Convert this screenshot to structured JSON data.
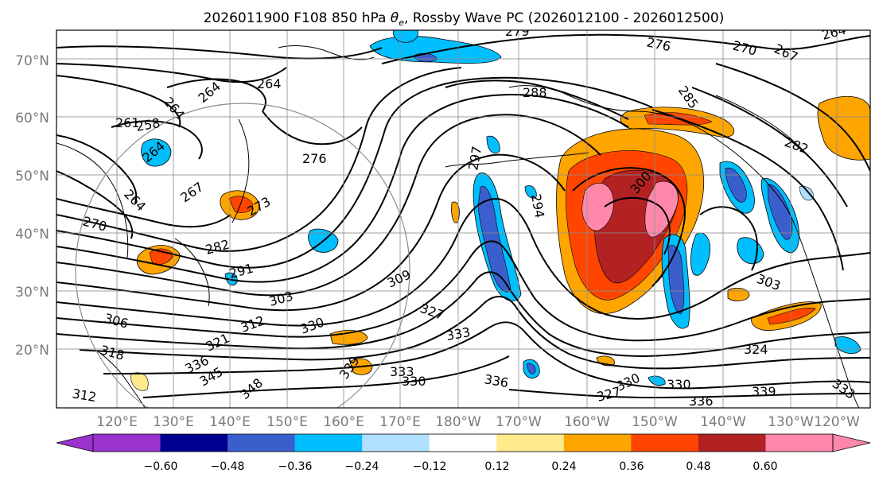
{
  "title": {
    "prefix": "2026011900 F108 850 hPa ",
    "theta": "θ",
    "theta_sub": "e",
    "suffix": ", Rossby Wave PC (2026012100 - 2026012500)"
  },
  "map": {
    "projection": "equirectangular",
    "lon_range": [
      "110°E",
      "120°W"
    ],
    "lat_range": [
      "10°N",
      "75°N"
    ],
    "fill_variable": "Rossby Wave PC",
    "contour_variable": "850 hPa theta-e",
    "lat_labels": [
      "70°N",
      "60°N",
      "50°N",
      "40°N",
      "30°N",
      "20°N"
    ],
    "lon_labels": [
      "120°E",
      "130°E",
      "140°E",
      "150°E",
      "160°E",
      "170°E",
      "180°W",
      "170°W",
      "160°W",
      "150°W",
      "140°W",
      "130°W",
      "120°W"
    ],
    "contour_labels": [
      "279",
      "276",
      "270",
      "267",
      "264",
      "288",
      "285",
      "282",
      "264",
      "264",
      "264",
      "264",
      "261",
      "258",
      "276",
      "264",
      "267",
      "270",
      "273",
      "282",
      "291",
      "303",
      "309",
      "300",
      "297",
      "294",
      "303",
      "312",
      "321",
      "330",
      "306",
      "318",
      "336",
      "345",
      "348",
      "327",
      "333",
      "333",
      "339",
      "336",
      "330",
      "330",
      "330",
      "327",
      "324",
      "336",
      "339",
      "333",
      "312"
    ]
  },
  "colorbar": {
    "ticks": [
      "−0.60",
      "−0.48",
      "−0.36",
      "−0.24",
      "−0.12",
      "0.12",
      "0.24",
      "0.36",
      "0.48",
      "0.60"
    ],
    "colors": [
      "#9933cc",
      "#000090",
      "#3a5fcd",
      "#00bfff",
      "#b0e0ff",
      "#ffffff",
      "#ffea8c",
      "#ffa500",
      "#ff4500",
      "#b22222",
      "#ff88aa",
      "#ff88aa"
    ]
  },
  "style": {
    "grid_color": "#8c8c8c",
    "label_color": "#7a7a7a"
  }
}
